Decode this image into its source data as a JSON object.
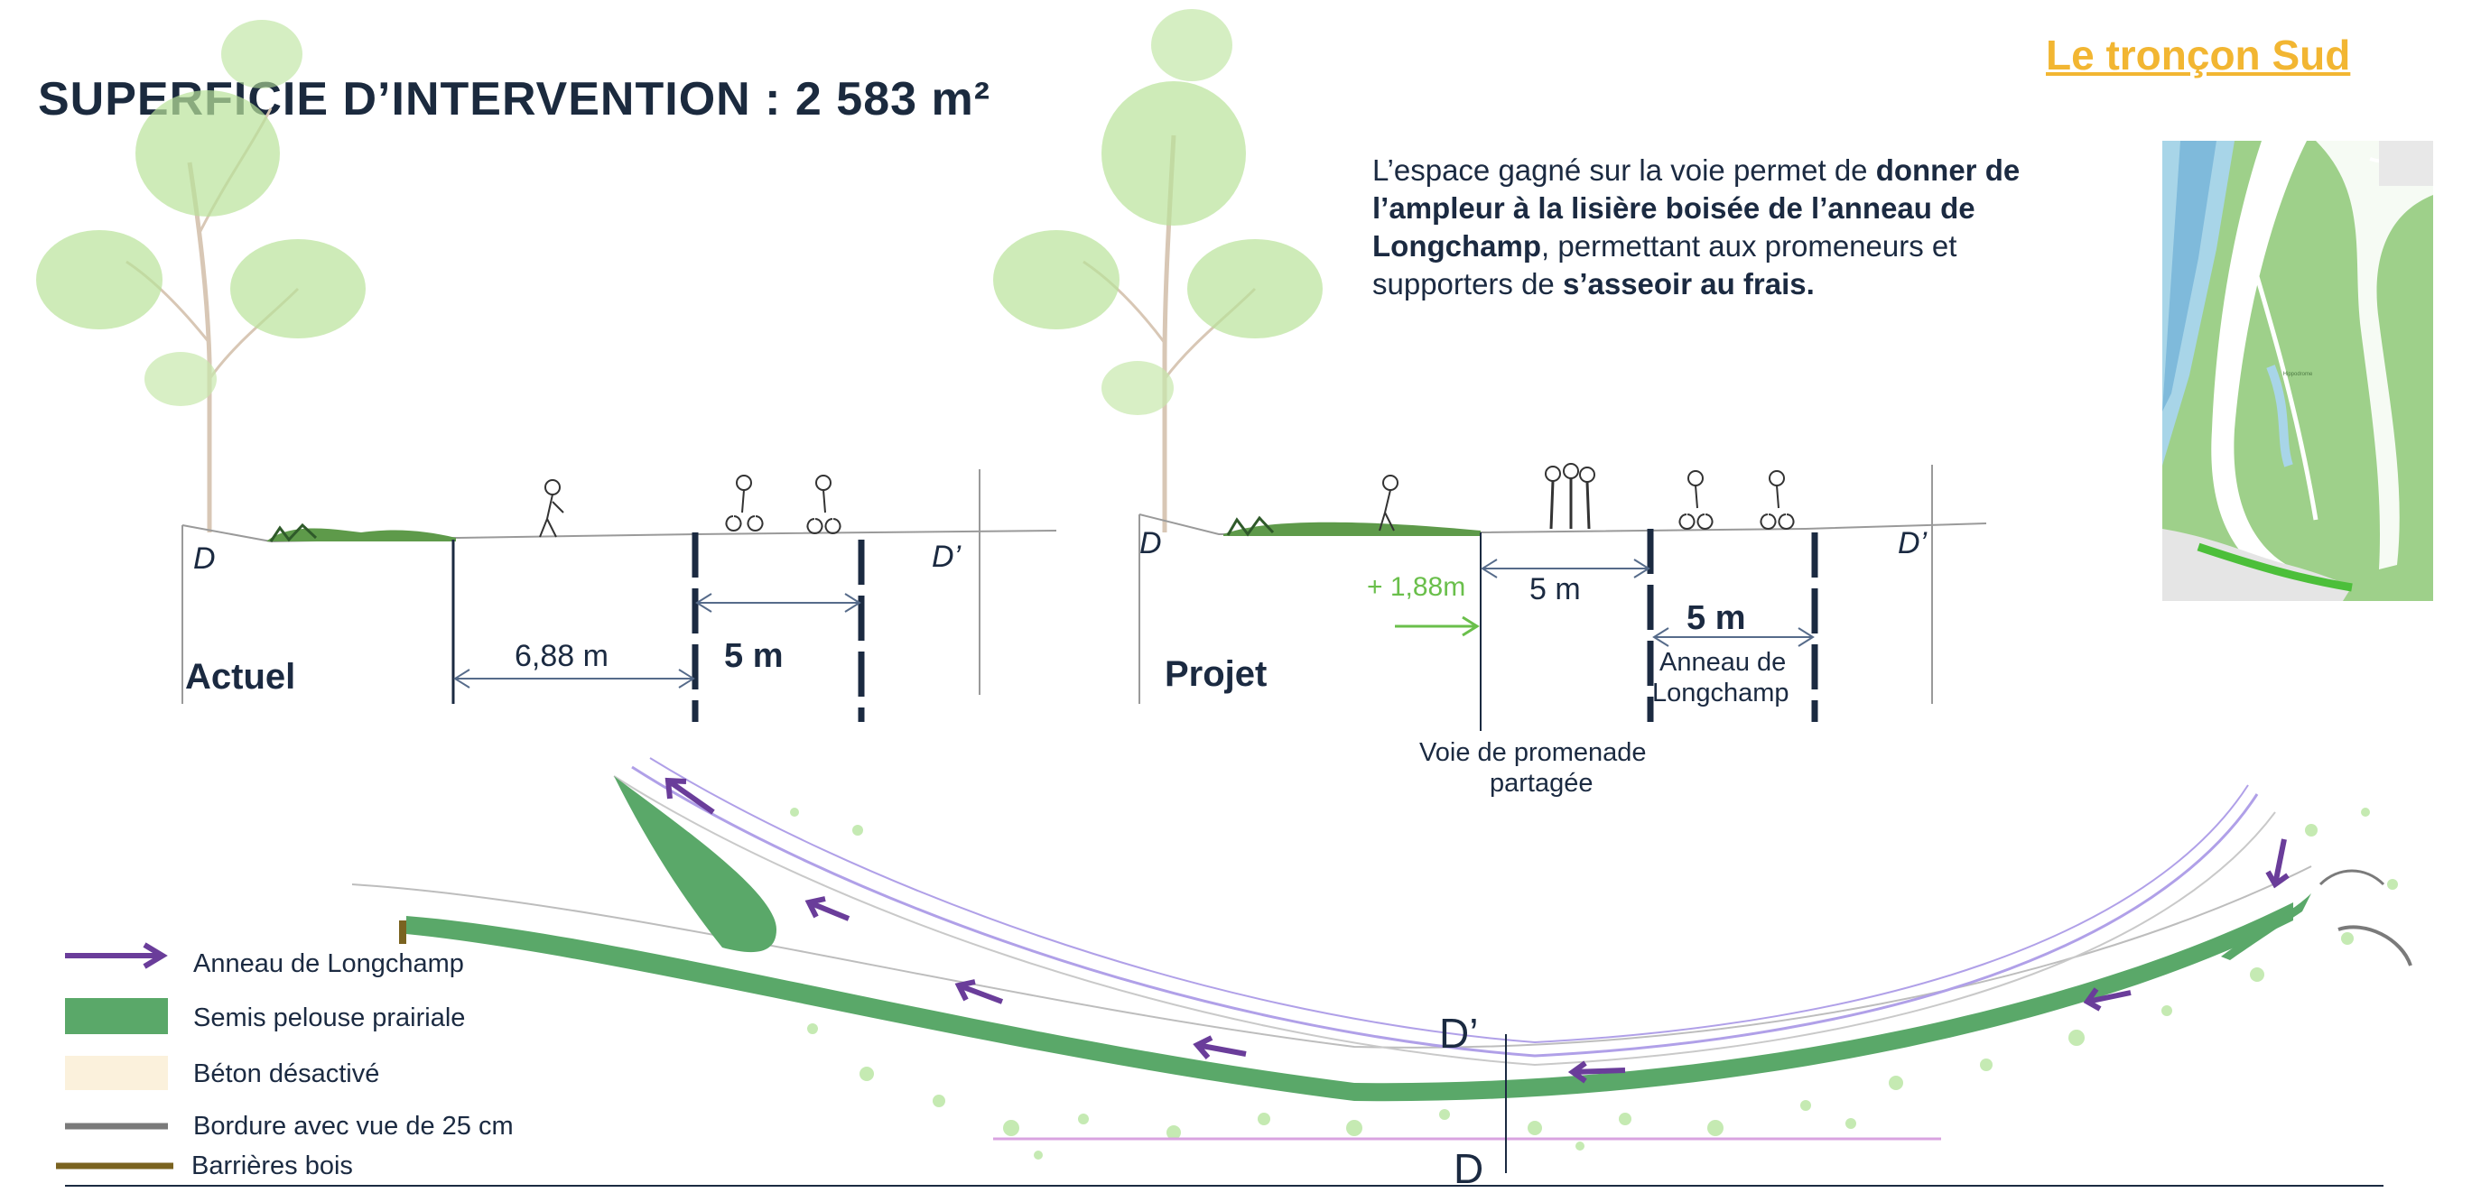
{
  "header": {
    "title": "SUPERFICIE D’INTERVENTION :  2 583 m²",
    "section_title": "Le tronçon Sud"
  },
  "description": {
    "p1": "L’espace gagné sur la voie permet de ",
    "b1": "donner de l’ampleur à la lisière boisée de l’anneau de Longchamp",
    "p2": ", permettant aux promeneurs et supporters de ",
    "b2": "s’asseoir au frais."
  },
  "section_actuel": {
    "label": "Actuel",
    "d_left": "D",
    "d_right": "D’",
    "width_left": "6,88  m",
    "width_right": "5 m"
  },
  "section_projet": {
    "label": "Projet",
    "d_left": "D",
    "d_right": "D’",
    "gain": "+ 1,88m",
    "width_promenade": "5  m",
    "width_anneau": "5 m",
    "anneau_label_1": "Anneau de",
    "anneau_label_2": "Longchamp",
    "promenade_label_1": "Voie de promenade",
    "promenade_label_2": "partagée"
  },
  "plan": {
    "cut_top": "D’",
    "cut_bottom": "D"
  },
  "legend": {
    "items": [
      {
        "label": "Anneau de Longchamp",
        "symbol": "purple-arrow",
        "color": "#6a3d9a"
      },
      {
        "label": "Semis pelouse prairiale",
        "symbol": "green-hatch",
        "color": "#5aa869"
      },
      {
        "label": "Béton désactivé",
        "symbol": "beige-rect",
        "color": "#fbf1dc"
      },
      {
        "label": "Bordure avec vue de 25 cm",
        "symbol": "grey-line",
        "color": "#7a7a7a"
      },
      {
        "label": "Barrières bois",
        "symbol": "brown-line",
        "color": "#7a6320"
      }
    ]
  },
  "colors": {
    "accent_yellow": "#f2b632",
    "navy": "#1b2a3e",
    "grass_green": "#5aa869",
    "light_green": "#a8d98a",
    "purple": "#6a3d9a",
    "water": "#a8d5e8"
  }
}
